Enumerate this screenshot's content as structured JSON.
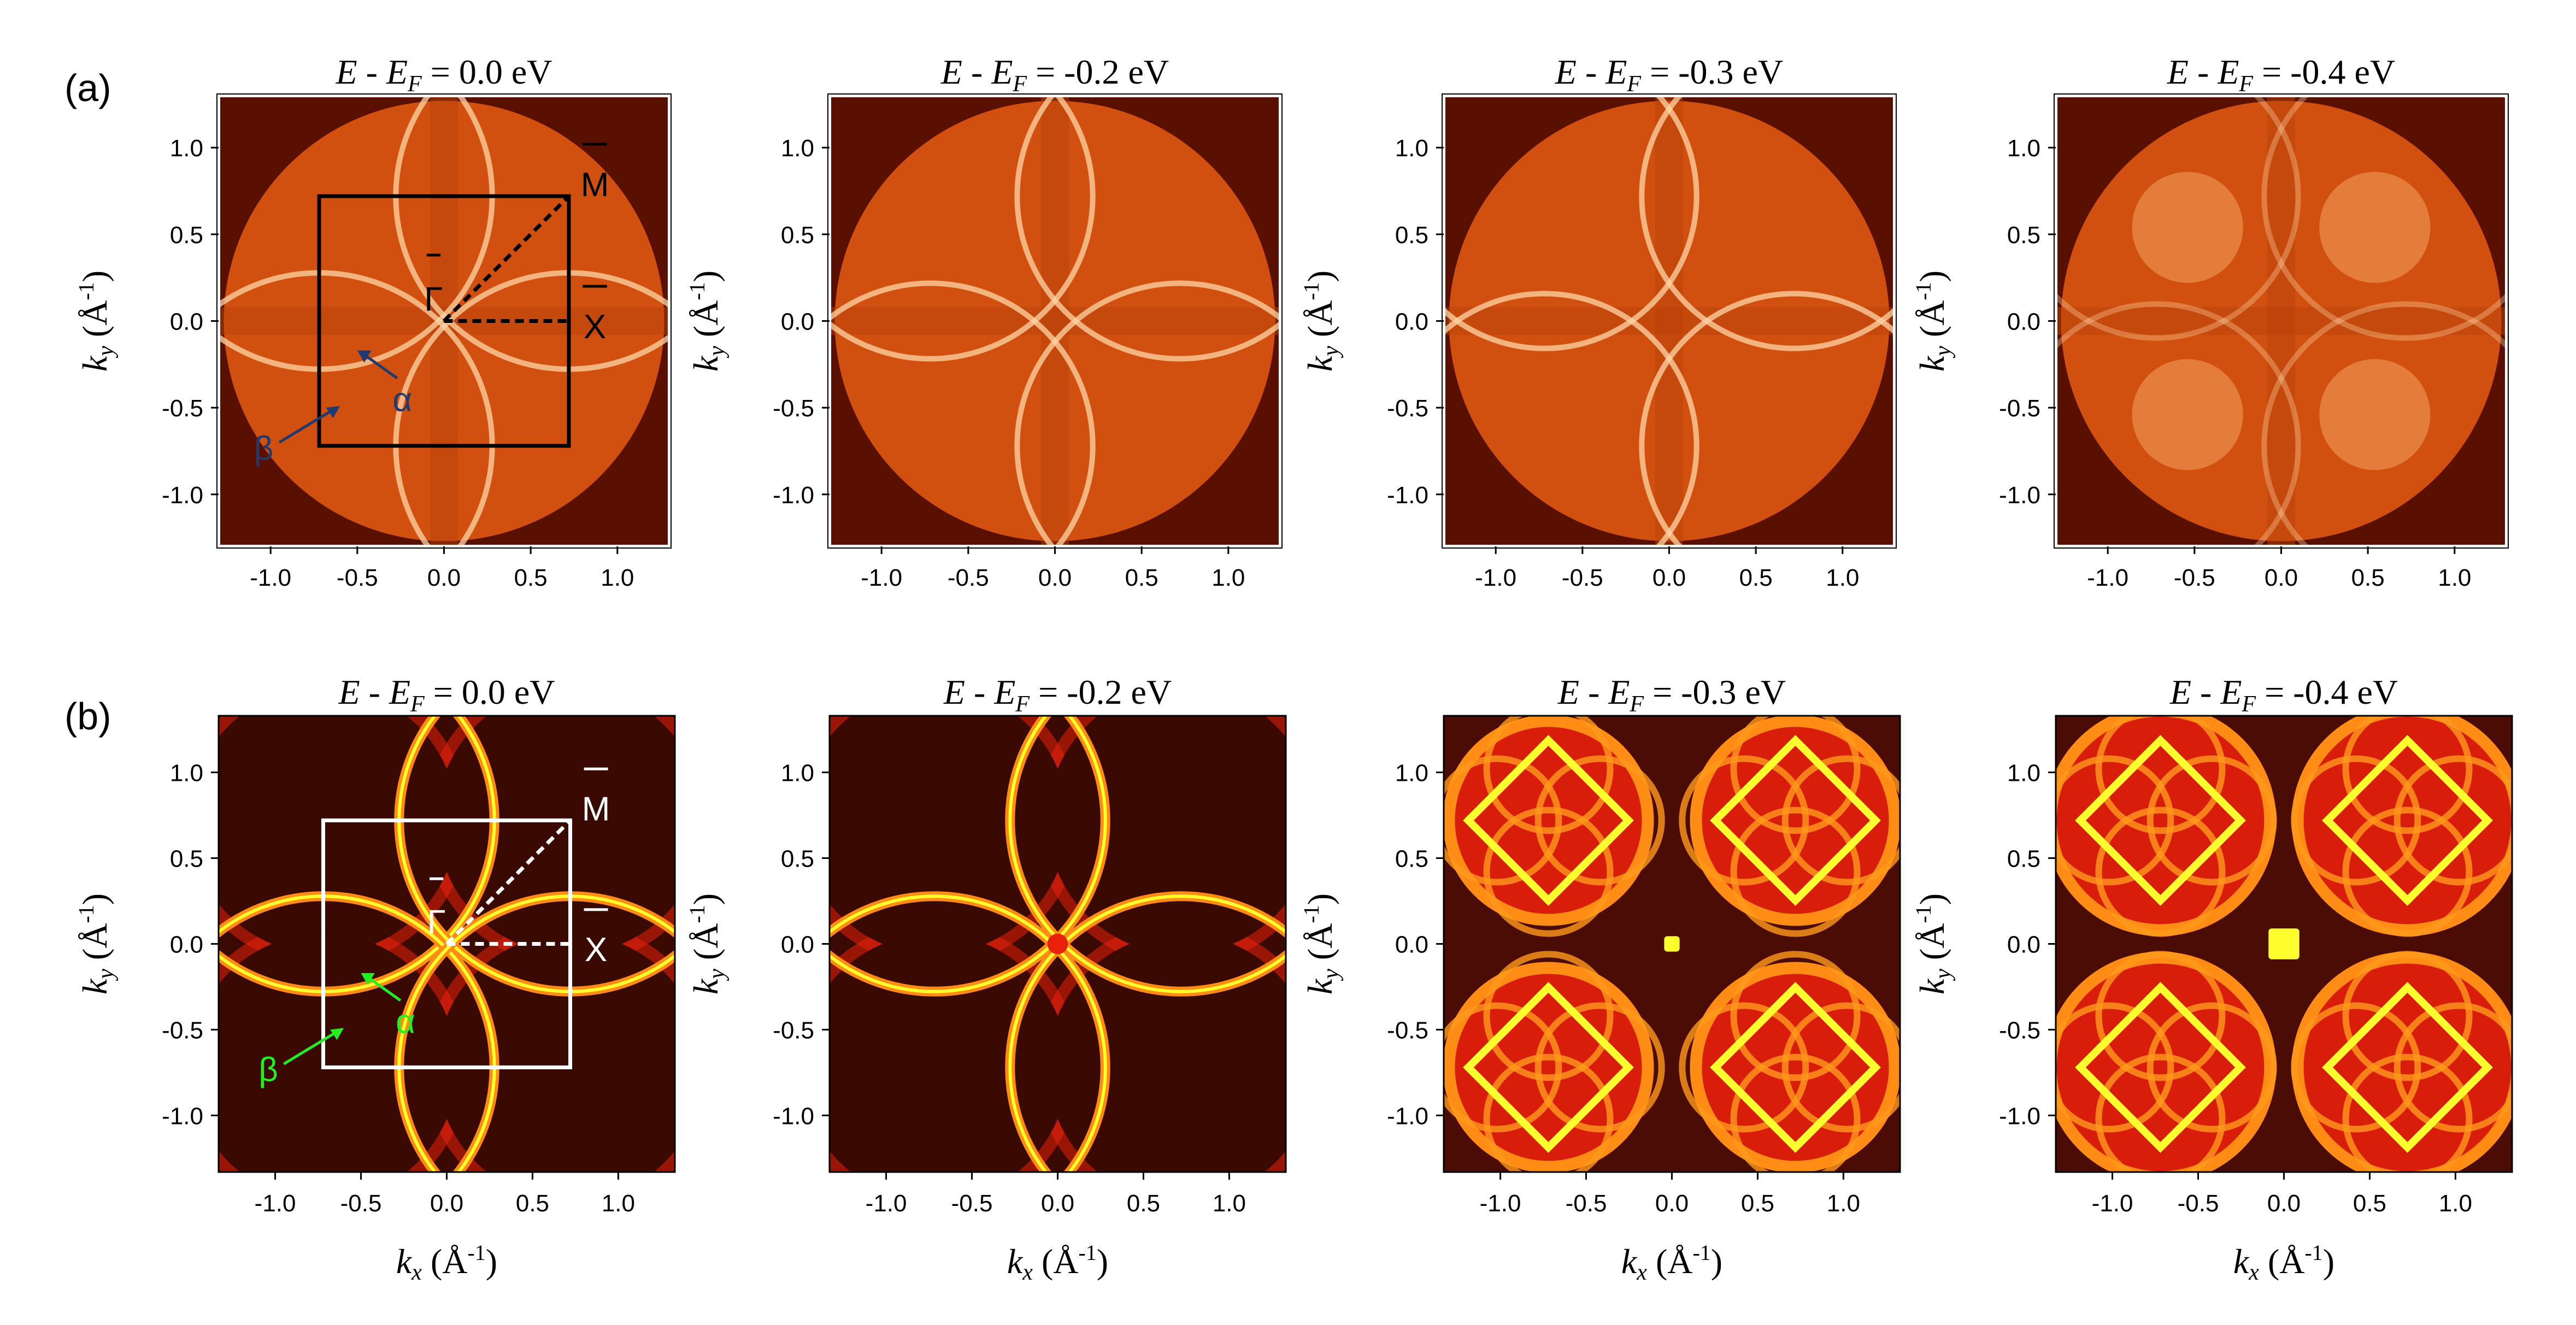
{
  "figure": {
    "row_labels": [
      "(a)",
      "(b)"
    ]
  },
  "colors": {
    "arpes_background": "#d2500f",
    "arpes_band": "#ffd6a6",
    "arpes_edge": "#5a1000",
    "calc_background": "#3a0a02",
    "calc_red": "#e8200c",
    "calc_orange": "#ff8c14",
    "calc_yellow": "#ffff30",
    "bz_box_a": "#000000",
    "bz_box_b": "#ffffff",
    "arrow_label_a": "#1f3a6e",
    "arrow_label_b": "#22ee22"
  },
  "annotations": {
    "gamma": "Γ",
    "m_point": "M",
    "x_point": "X",
    "alpha": "α",
    "beta": "β"
  },
  "chart_data": [
    {
      "type": "heatmap",
      "row": "a",
      "title_prefix": "E - E",
      "title_sub": "F",
      "title_value": " = 0.0 eV",
      "xlabel": "",
      "ylabel": "k_y (Å^-1)",
      "xlim": [
        -1.3,
        1.3
      ],
      "ylim": [
        -1.3,
        1.3
      ],
      "xticks": [
        "-1.0",
        "-0.5",
        "0.0",
        "0.5",
        "1.0"
      ],
      "yticks": [
        "1.0",
        "0.5",
        "0.0",
        "-0.5",
        "-1.0"
      ],
      "brillouin_zone": {
        "kx": [
          -0.72,
          0.72
        ],
        "ky": [
          -0.72,
          0.72
        ]
      },
      "show_annotations": true
    },
    {
      "type": "heatmap",
      "row": "a",
      "title_prefix": "E - E",
      "title_sub": "F",
      "title_value": " = -0.2 eV",
      "xlabel": "",
      "ylabel": "k_y (Å^-1)",
      "xlim": [
        -1.3,
        1.3
      ],
      "ylim": [
        -1.3,
        1.3
      ],
      "xticks": [
        "-1.0",
        "-0.5",
        "0.0",
        "0.5",
        "1.0"
      ],
      "yticks": [
        "1.0",
        "0.5",
        "0.0",
        "-0.5",
        "-1.0"
      ]
    },
    {
      "type": "heatmap",
      "row": "a",
      "title_prefix": "E - E",
      "title_sub": "F",
      "title_value": " = -0.3 eV",
      "xlabel": "",
      "ylabel": "k_y (Å^-1)",
      "xlim": [
        -1.3,
        1.3
      ],
      "ylim": [
        -1.3,
        1.3
      ],
      "xticks": [
        "-1.0",
        "-0.5",
        "0.0",
        "0.5",
        "1.0"
      ],
      "yticks": [
        "1.0",
        "0.5",
        "0.0",
        "-0.5",
        "-1.0"
      ]
    },
    {
      "type": "heatmap",
      "row": "a",
      "title_prefix": "E - E",
      "title_sub": "F",
      "title_value": " = -0.4 eV",
      "xlabel": "",
      "ylabel": "k_y (Å^-1)",
      "xlim": [
        -1.3,
        1.3
      ],
      "ylim": [
        -1.3,
        1.3
      ],
      "xticks": [
        "-1.0",
        "-0.5",
        "0.0",
        "0.5",
        "1.0"
      ],
      "yticks": [
        "1.0",
        "0.5",
        "0.0",
        "-0.5",
        "-1.0"
      ]
    },
    {
      "type": "heatmap",
      "row": "b",
      "title_prefix": "E - E",
      "title_sub": "F",
      "title_value": " = 0.0 eV",
      "xlabel": "k_x (Å^-1)",
      "ylabel": "k_y (Å^-1)",
      "xlim": [
        -1.33,
        1.33
      ],
      "ylim": [
        -1.33,
        1.33
      ],
      "xticks": [
        "-1.0",
        "-0.5",
        "0.0",
        "0.5",
        "1.0"
      ],
      "yticks": [
        "1.0",
        "0.5",
        "0.0",
        "-0.5",
        "-1.0"
      ],
      "brillouin_zone": {
        "kx": [
          -0.72,
          0.72
        ],
        "ky": [
          -0.72,
          0.72
        ]
      },
      "show_annotations": true
    },
    {
      "type": "heatmap",
      "row": "b",
      "title_prefix": "E - E",
      "title_sub": "F",
      "title_value": " = -0.2 eV",
      "xlabel": "k_x (Å^-1)",
      "ylabel": "k_y (Å^-1)",
      "xlim": [
        -1.33,
        1.33
      ],
      "ylim": [
        -1.33,
        1.33
      ],
      "xticks": [
        "-1.0",
        "-0.5",
        "0.0",
        "0.5",
        "1.0"
      ],
      "yticks": [
        "1.0",
        "0.5",
        "0.0",
        "-0.5",
        "-1.0"
      ]
    },
    {
      "type": "heatmap",
      "row": "b",
      "title_prefix": "E - E",
      "title_sub": "F",
      "title_value": " = -0.3 eV",
      "xlabel": "k_x (Å^-1)",
      "ylabel": "k_y (Å^-1)",
      "xlim": [
        -1.33,
        1.33
      ],
      "ylim": [
        -1.33,
        1.33
      ],
      "xticks": [
        "-1.0",
        "-0.5",
        "0.0",
        "0.5",
        "1.0"
      ],
      "yticks": [
        "1.0",
        "0.5",
        "0.0",
        "-0.5",
        "-1.0"
      ]
    },
    {
      "type": "heatmap",
      "row": "b",
      "title_prefix": "E - E",
      "title_sub": "F",
      "title_value": " = -0.4 eV",
      "xlabel": "k_x (Å^-1)",
      "ylabel": "k_y (Å^-1)",
      "xlim": [
        -1.33,
        1.33
      ],
      "ylim": [
        -1.33,
        1.33
      ],
      "xticks": [
        "-1.0",
        "-0.5",
        "0.0",
        "0.5",
        "1.0"
      ],
      "yticks": [
        "1.0",
        "0.5",
        "0.0",
        "-0.5",
        "-1.0"
      ]
    }
  ]
}
